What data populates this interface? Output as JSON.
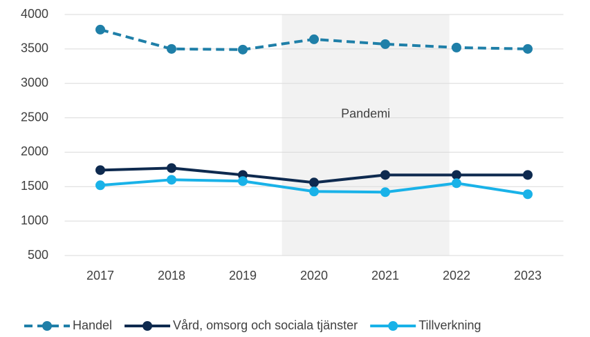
{
  "chart_data": {
    "type": "line",
    "categories": [
      "2017",
      "2018",
      "2019",
      "2020",
      "2021",
      "2022",
      "2023"
    ],
    "series": [
      {
        "name": "Handel",
        "color": "#1f7fa8",
        "dashed": true,
        "values": [
          3780,
          3500,
          3490,
          3640,
          3570,
          3520,
          3500
        ]
      },
      {
        "name": "Vård, omsorg och sociala tjänster",
        "color": "#0e2a4f",
        "dashed": false,
        "values": [
          1740,
          1770,
          1670,
          1560,
          1670,
          1670,
          1670
        ]
      },
      {
        "name": "Tillverkning",
        "color": "#19b2e8",
        "dashed": false,
        "values": [
          1520,
          1600,
          1580,
          1430,
          1420,
          1550,
          1390
        ]
      }
    ],
    "ylim": [
      500,
      4000
    ],
    "yticks": [
      500,
      1000,
      1500,
      2000,
      2500,
      3000,
      3500,
      4000
    ],
    "grid": true,
    "shaded_region": {
      "label": "Pandemi",
      "from": "2020",
      "to": "2022"
    },
    "legend": "bottom"
  }
}
